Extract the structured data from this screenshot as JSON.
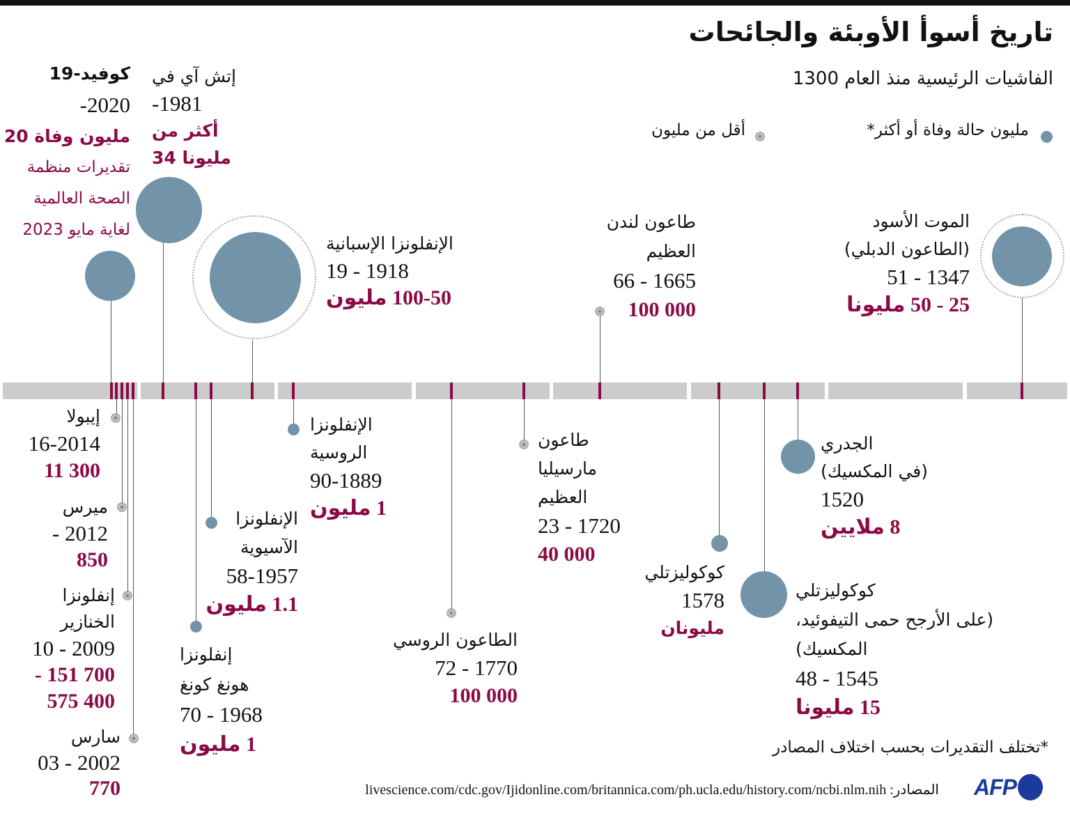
{
  "header": {
    "title": "تاريخ أسوأ الأوبئة والجائحات",
    "subtitle": "الفاشيات الرئيسية منذ العام 1300"
  },
  "legend": {
    "major_label": "مليون حالة وفاة أو أكثر*",
    "minor_label": "أقل من مليون",
    "major_icon": "large-blue-dot",
    "minor_icon": "small-gray-dotted-dot"
  },
  "colors": {
    "accent": "#8b0a45",
    "circle": "#7293a8",
    "timeline": "#cccccc",
    "brand": "#1b3a9b"
  },
  "events": {
    "covid": {
      "name": [
        "كوفيد-19"
      ],
      "years": "-2020",
      "deaths": [
        "مليون وفاة 20"
      ],
      "note": [
        "تقديرات منظمة",
        "الصحة العالمية",
        "لغاية مايو 2023"
      ]
    },
    "hiv": {
      "name": [
        "إتش آي في"
      ],
      "years": "-1981",
      "deaths": [
        "أكثر من",
        "مليونا 34"
      ]
    },
    "spanish_flu": {
      "name": [
        "الإنفلونزا الإسبانية"
      ],
      "years": "19 - 1918",
      "deaths": [
        "100-50 مليون"
      ]
    },
    "london_plague": {
      "name": [
        "طاعون لندن",
        "العظيم"
      ],
      "years": "66 - 1665",
      "deaths": [
        "100 000"
      ]
    },
    "black_death": {
      "name": [
        "الموت الأسود",
        "(الطاعون الدبلي)"
      ],
      "years": "51 - 1347",
      "deaths": [
        "25 - 50 مليونا"
      ]
    },
    "ebola": {
      "name": [
        "إيبولا"
      ],
      "years": "16-2014",
      "deaths": [
        "11 300"
      ]
    },
    "mers": {
      "name": [
        "ميرس"
      ],
      "years": "- 2012",
      "deaths": [
        "850"
      ]
    },
    "swine_flu": {
      "name": [
        "إنفلونزا",
        "الخنازير"
      ],
      "years": "10 - 2009",
      "deaths": [
        "- 151 700",
        "575 400"
      ]
    },
    "sars": {
      "name": [
        "سارس"
      ],
      "years": "03 - 2002",
      "deaths": [
        "770"
      ]
    },
    "hk_flu": {
      "name": [
        "إنفلونزا",
        "هونغ كونغ"
      ],
      "years": "70 - 1968",
      "deaths": [
        "1 مليون"
      ]
    },
    "asian_flu": {
      "name": [
        "الإنفلونزا",
        "الآسيوية"
      ],
      "years": "58-1957",
      "deaths": [
        "1.1 مليون"
      ]
    },
    "russian_flu": {
      "name": [
        "الإنفلونزا",
        "الروسية"
      ],
      "years": "90-1889",
      "deaths": [
        "1 مليون"
      ]
    },
    "russian_plague": {
      "name": [
        "الطاعون الروسي"
      ],
      "years": "72 - 1770",
      "deaths": [
        "100 000"
      ]
    },
    "marseille_plague": {
      "name": [
        "طاعون",
        "مارسيليا",
        "العظيم"
      ],
      "years": "23 - 1720",
      "deaths": [
        "40 000"
      ]
    },
    "cocoliztli_1578": {
      "name": [
        "كوكوليزتلي"
      ],
      "years": "1578",
      "deaths": [
        "مليونان"
      ]
    },
    "cocoliztli_1545": {
      "name": [
        "كوكوليزتلي",
        "(على الأرجح حمى التيفوئيد،",
        "المكسيك)"
      ],
      "years": "48 - 1545",
      "deaths": [
        "15 مليونا"
      ]
    },
    "smallpox": {
      "name": [
        "الجدري",
        "(في المكسيك)"
      ],
      "years": "1520",
      "deaths": [
        "8 ملايين"
      ]
    }
  },
  "footer": {
    "footnote": "*تختلف التقديرات بحسب اختلاف المصادر",
    "sources": "المصادر: livescience.com/cdc.gov/Ijidonline.com/britannica.com/ph.ucla.edu/history.com/ncbi.nlm.nih",
    "logo": "AFP"
  }
}
